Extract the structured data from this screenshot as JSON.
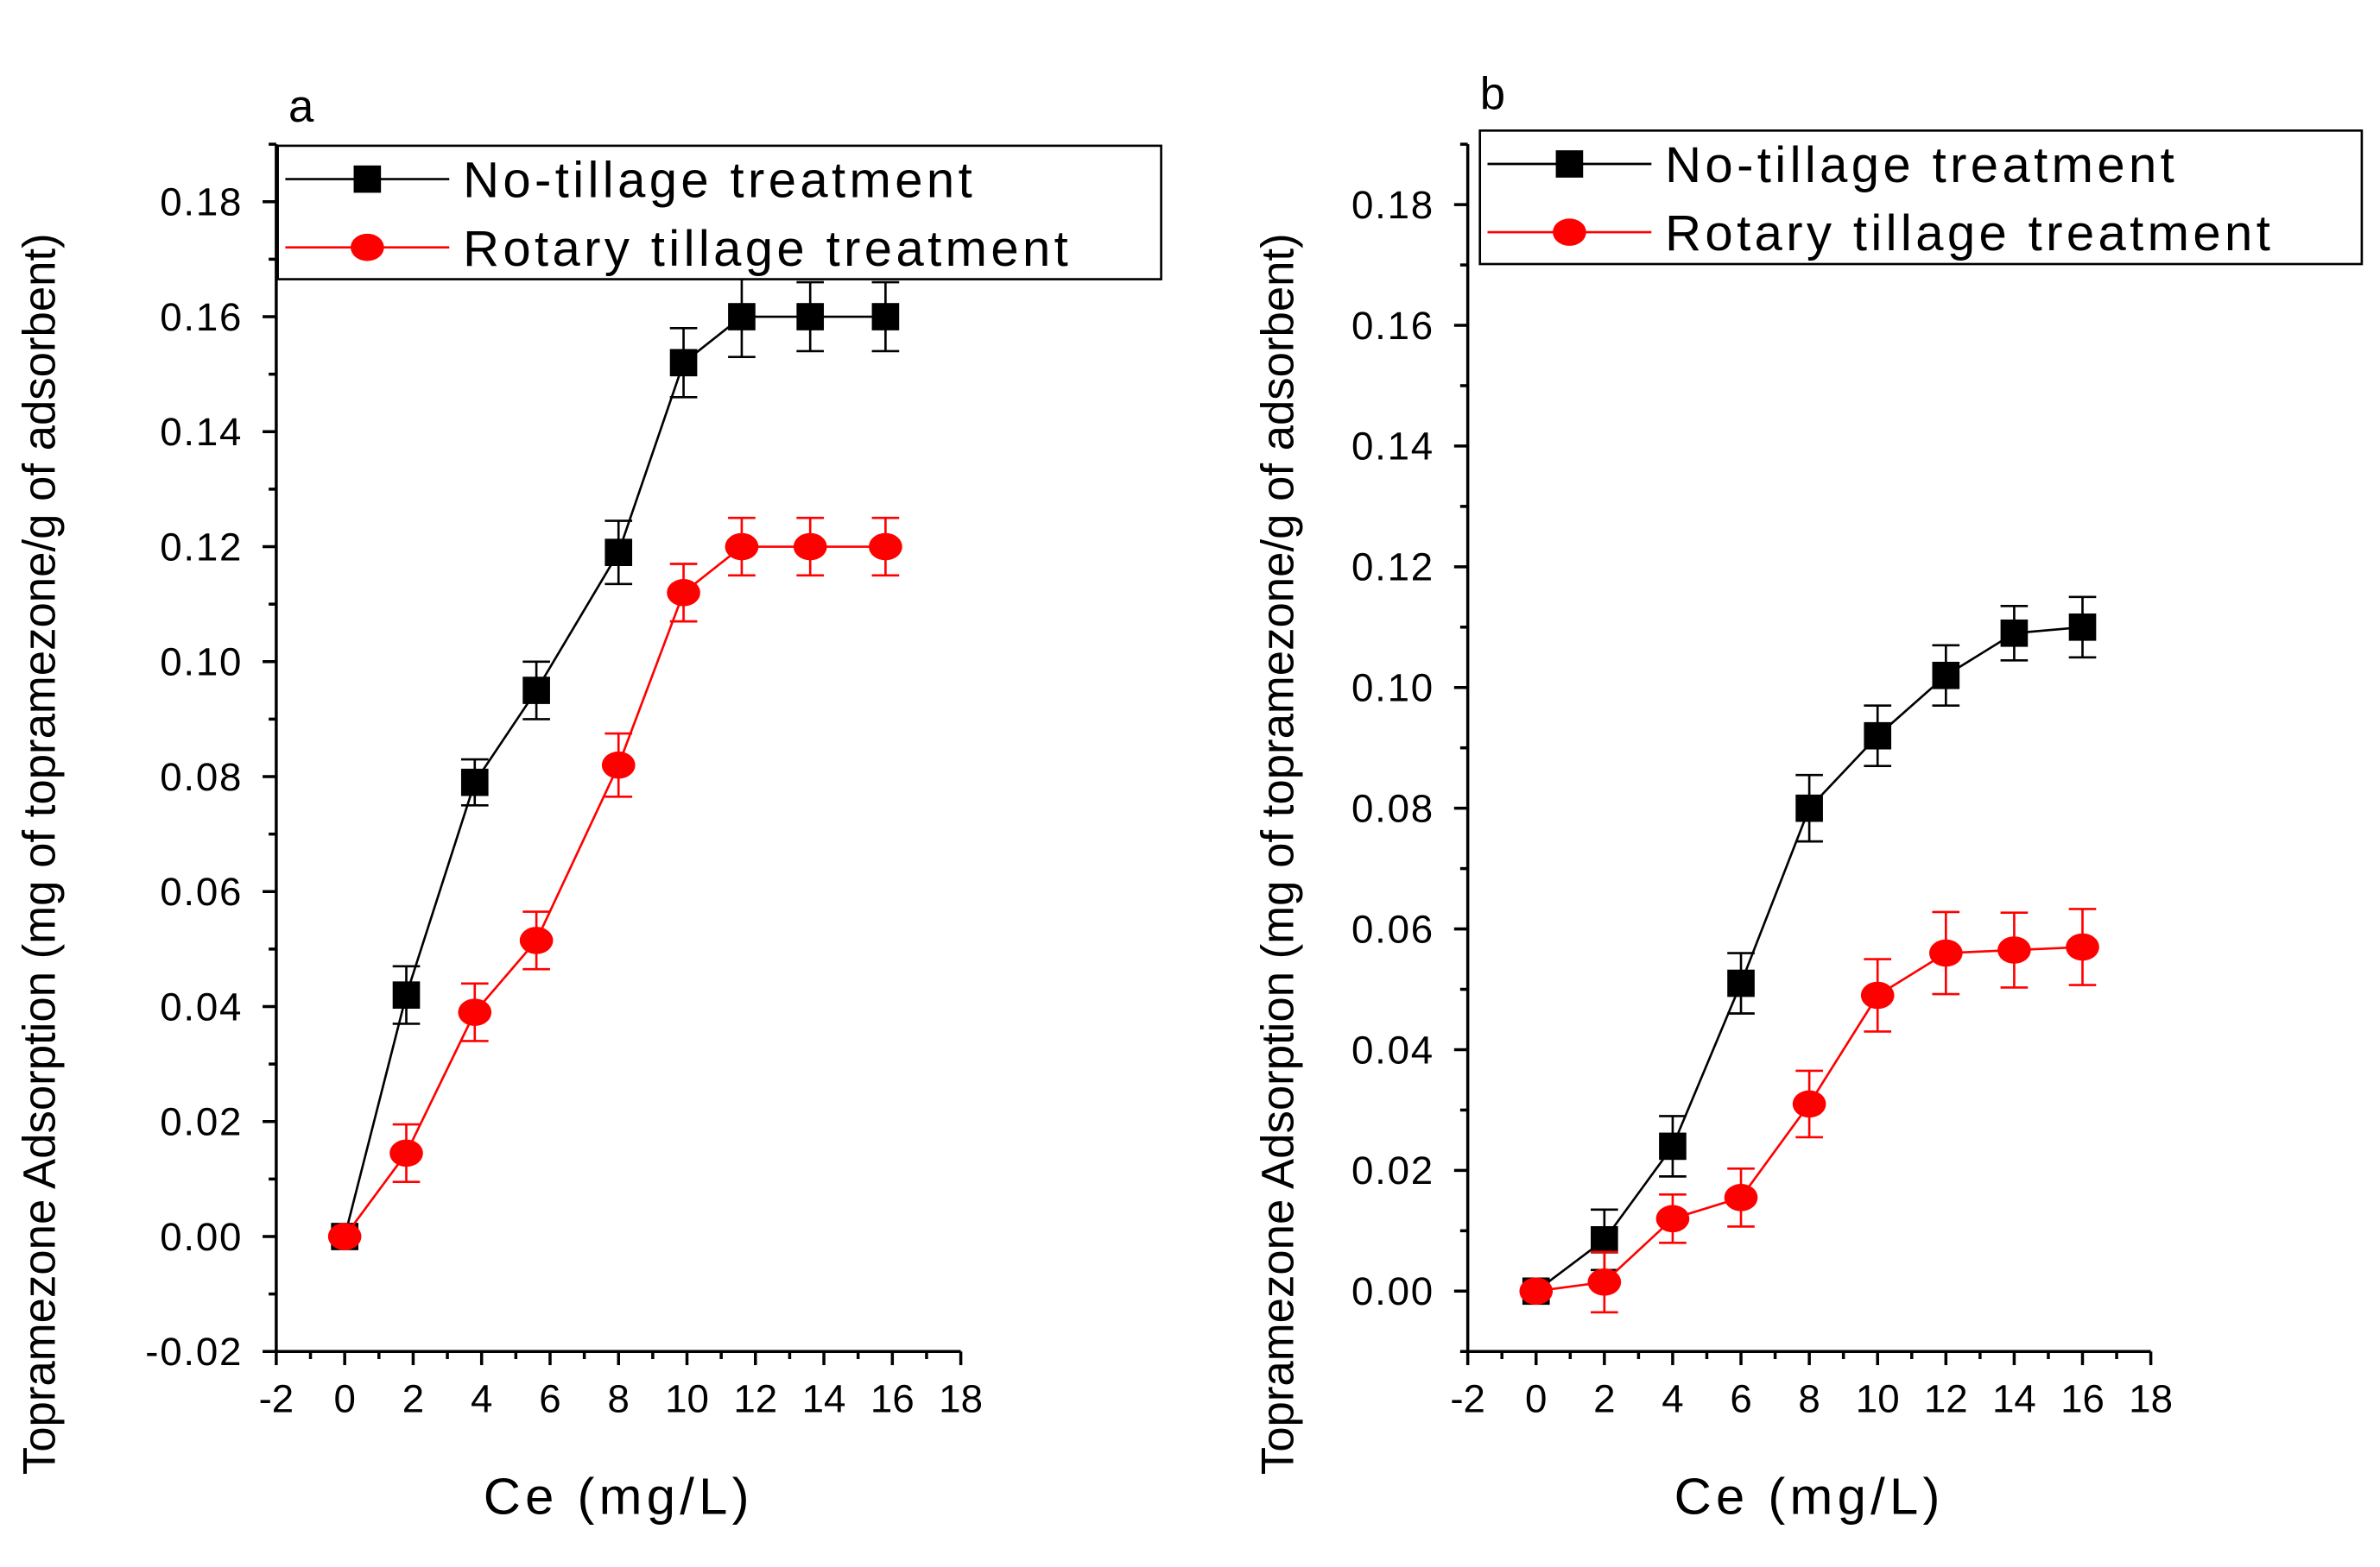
{
  "chart_data": [
    {
      "type": "line",
      "panel_label": "a",
      "xlabel": "Ce (mg/L)",
      "ylabel": "Topramezone Adsorption (mg of topramezone/g of adsorbent)",
      "xlim": [
        -2,
        18
      ],
      "ylim": [
        -0.02,
        0.19
      ],
      "xticks": [
        "-2",
        "0",
        "2",
        "4",
        "6",
        "8",
        "10",
        "12",
        "14",
        "16",
        "18"
      ],
      "yticks": [
        "-0.02",
        "0.00",
        "0.02",
        "0.04",
        "0.06",
        "0.08",
        "0.10",
        "0.12",
        "0.14",
        "0.16",
        "0.18"
      ],
      "legend_position": "top",
      "series": [
        {
          "name": "No-tillage treatment",
          "color": "#000000",
          "marker": "square",
          "x": [
            0,
            1.8,
            3.8,
            5.6,
            8.0,
            9.9,
            11.6,
            13.6,
            15.8
          ],
          "y": [
            0,
            0.042,
            0.079,
            0.095,
            0.119,
            0.152,
            0.16,
            0.16,
            0.16
          ],
          "err": [
            0.001,
            0.005,
            0.004,
            0.005,
            0.0055,
            0.006,
            0.007,
            0.006,
            0.006
          ]
        },
        {
          "name": "Rotary tillage treatment",
          "color": "#ff0000",
          "marker": "circle",
          "x": [
            0,
            1.8,
            3.8,
            5.6,
            8.0,
            9.9,
            11.6,
            13.6,
            15.8
          ],
          "y": [
            0,
            0.0145,
            0.039,
            0.0515,
            0.082,
            0.112,
            0.12,
            0.12,
            0.12
          ],
          "err": [
            0.001,
            0.005,
            0.005,
            0.005,
            0.0055,
            0.005,
            0.005,
            0.005,
            0.005
          ]
        }
      ]
    },
    {
      "type": "line",
      "panel_label": "b",
      "xlabel": "Ce (mg/L)",
      "ylabel": "Topramezone Adsorption (mg of topramezone/g of adsorbent)",
      "xlim": [
        -2,
        18
      ],
      "ylim": [
        -0.01,
        0.19
      ],
      "xticks": [
        "-2",
        "0",
        "2",
        "4",
        "6",
        "8",
        "10",
        "12",
        "14",
        "16",
        "18"
      ],
      "yticks": [
        "0.00",
        "0.02",
        "0.04",
        "0.06",
        "0.08",
        "0.10",
        "0.12",
        "0.14",
        "0.16",
        "0.18"
      ],
      "legend_position": "top",
      "series": [
        {
          "name": "No-tillage treatment",
          "color": "#000000",
          "marker": "square",
          "x": [
            0,
            2,
            4,
            6,
            8,
            10,
            12,
            14,
            16
          ],
          "y": [
            0,
            0.0085,
            0.024,
            0.051,
            0.08,
            0.092,
            0.102,
            0.109,
            0.11
          ],
          "err": [
            0.001,
            0.005,
            0.005,
            0.005,
            0.0055,
            0.005,
            0.005,
            0.0045,
            0.005
          ]
        },
        {
          "name": "Rotary tillage treatment",
          "color": "#ff0000",
          "marker": "circle",
          "x": [
            0,
            2,
            4,
            6,
            8,
            10,
            12,
            14,
            16
          ],
          "y": [
            0,
            0.0015,
            0.012,
            0.0155,
            0.031,
            0.049,
            0.056,
            0.0565,
            0.057
          ],
          "err": [
            0.001,
            0.005,
            0.004,
            0.0048,
            0.0055,
            0.006,
            0.0068,
            0.0062,
            0.0063
          ]
        }
      ]
    }
  ]
}
